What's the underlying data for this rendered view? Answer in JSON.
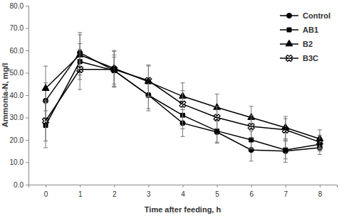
{
  "chart_data": {
    "type": "line",
    "x_label": "Time after feeding, h",
    "y_label": "Ammonia-N, mg/l",
    "x": [
      0,
      1,
      2,
      3,
      4,
      5,
      6,
      7,
      8
    ],
    "xlim": [
      -0.5,
      8.5
    ],
    "xticks": [
      0,
      1,
      2,
      3,
      4,
      5,
      6,
      7,
      8
    ],
    "ylim": [
      0,
      80
    ],
    "yticks": [
      {
        "value": 0,
        "label": "0.0"
      },
      {
        "value": 10,
        "label": "10.0"
      },
      {
        "value": 20,
        "label": "20.0"
      },
      {
        "value": 30,
        "label": "30.0"
      },
      {
        "value": 40,
        "label": "40.0"
      },
      {
        "value": 50,
        "label": "50.0"
      },
      {
        "value": 60,
        "label": "60.0"
      },
      {
        "value": 70,
        "label": "70.0"
      },
      {
        "value": 80,
        "label": "80.0"
      }
    ],
    "grid": false,
    "legend": "upper right",
    "series": [
      {
        "name": "Control",
        "color": "#000000",
        "marker": "circle",
        "line_style": "solid",
        "values": [
          37.5,
          59,
          51,
          40,
          27.5,
          23.5,
          15.5,
          15,
          16.5
        ],
        "errors": [
          8,
          9,
          7,
          7,
          6,
          5,
          5,
          5,
          3
        ]
      },
      {
        "name": "AB1",
        "color": "#000000",
        "marker": "square",
        "line_style": "solid",
        "values": [
          26.5,
          55,
          51,
          40,
          31,
          24,
          20,
          15.5,
          18
        ],
        "errors": [
          10,
          8,
          6,
          6,
          6,
          5,
          4,
          4,
          3
        ]
      },
      {
        "name": "B2",
        "color": "#000000",
        "marker": "triangle",
        "line_style": "solid",
        "values": [
          43,
          58,
          52,
          46,
          39.5,
          34.5,
          30,
          25.5,
          20.5
        ],
        "errors": [
          10,
          9,
          8,
          7,
          6,
          6,
          5,
          5,
          4
        ]
      },
      {
        "name": "B3C",
        "color": "#000000",
        "marker": "x",
        "line_style": "solid",
        "values": [
          28.5,
          51.5,
          51.5,
          46.5,
          36,
          30,
          26,
          24.5,
          19
        ],
        "errors": [
          9,
          9,
          8,
          7,
          6,
          5,
          5,
          5,
          3
        ]
      }
    ]
  }
}
